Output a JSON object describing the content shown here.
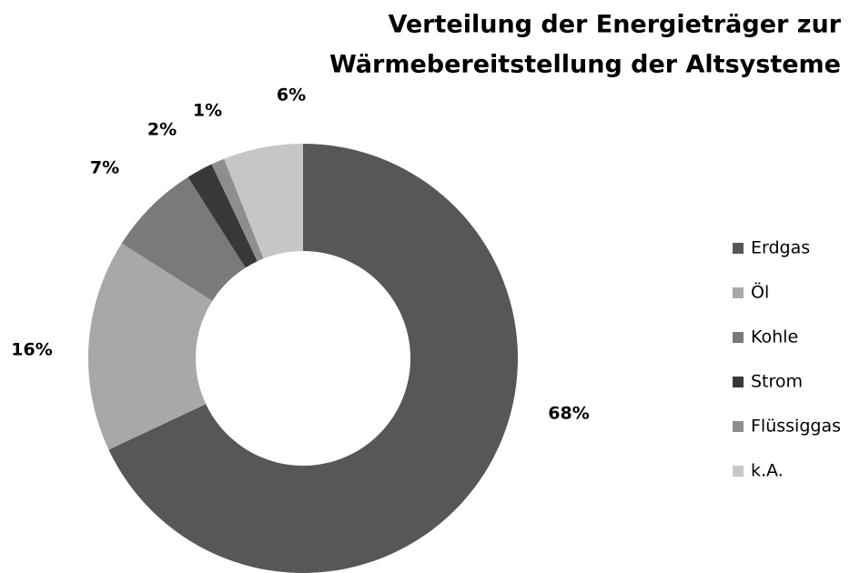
{
  "chart_data": {
    "type": "donut",
    "title": [
      "Verteilung der Energieträger zur",
      "Wärmebereitstellung der Altsysteme"
    ],
    "categories": [
      "Erdgas",
      "Öl",
      "Kohle",
      "Strom",
      "Flüssiggas",
      "k.A."
    ],
    "values": [
      68,
      16,
      7,
      2,
      1,
      6
    ],
    "value_labels": [
      "68%",
      "16%",
      "7%",
      "2%",
      "1%",
      "6%"
    ],
    "colors": [
      "#575757",
      "#a8a8a8",
      "#7a7a7a",
      "#383838",
      "#8e8e8e",
      "#c6c6c6"
    ],
    "legend": "right"
  }
}
